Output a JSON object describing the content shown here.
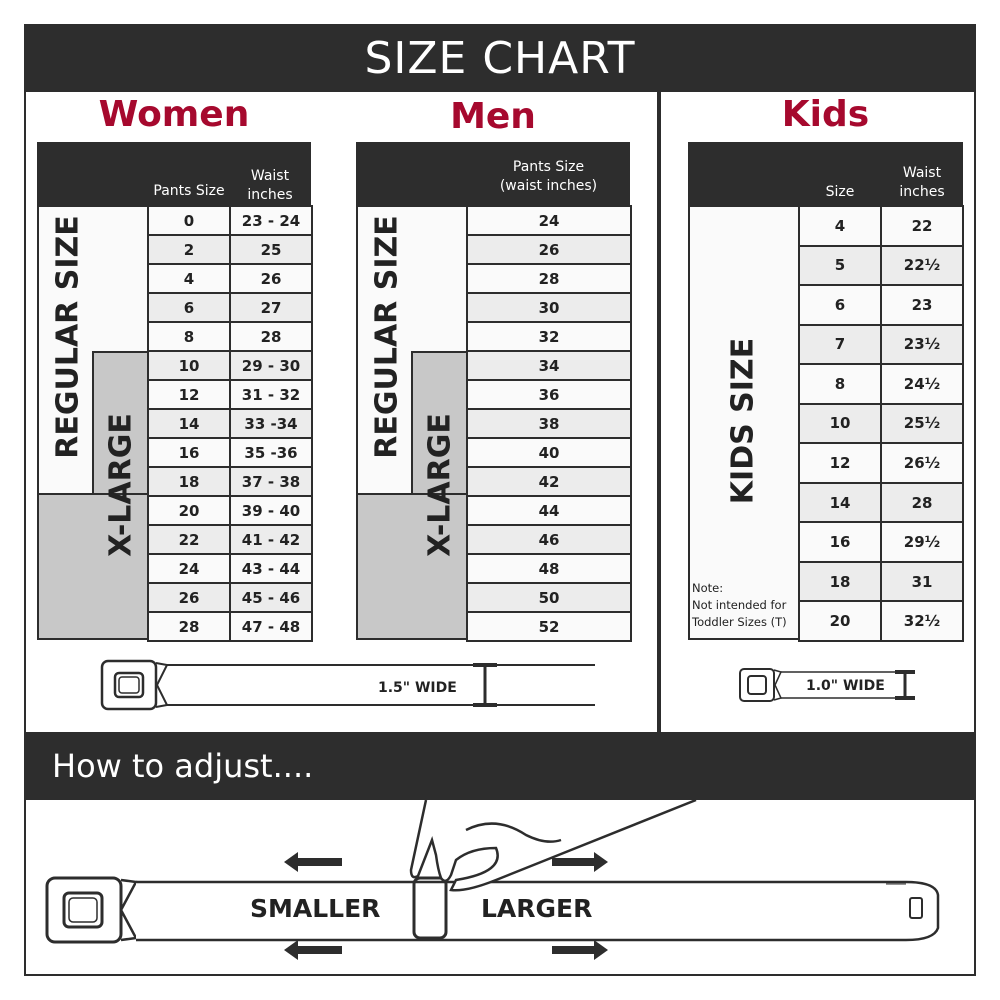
{
  "header": {
    "title": "SIZE CHART"
  },
  "women": {
    "title": "Women",
    "col_size": "Pants Size",
    "col_waist_line1": "Waist",
    "col_waist_line2": "inches",
    "regular_label": "REGULAR SIZE",
    "xlarge_label": "X-LARGE",
    "rows": [
      [
        "0",
        "23 - 24"
      ],
      [
        "2",
        "25"
      ],
      [
        "4",
        "26"
      ],
      [
        "6",
        "27"
      ],
      [
        "8",
        "28"
      ],
      [
        "10",
        "29 - 30"
      ],
      [
        "12",
        "31 - 32"
      ],
      [
        "14",
        "33 -34"
      ],
      [
        "16",
        "35 -36"
      ],
      [
        "18",
        "37 - 38"
      ],
      [
        "20",
        "39 - 40"
      ],
      [
        "22",
        "41 - 42"
      ],
      [
        "24",
        "43 - 44"
      ],
      [
        "26",
        "45 - 46"
      ],
      [
        "28",
        "47 - 48"
      ]
    ],
    "width_label": "1.5\" WIDE"
  },
  "men": {
    "title": "Men",
    "col_line1": "Pants Size",
    "col_line2": "(waist inches)",
    "regular_label": "REGULAR SIZE",
    "xlarge_label": "X-LARGE",
    "rows": [
      "24",
      "26",
      "28",
      "30",
      "32",
      "34",
      "36",
      "38",
      "40",
      "42",
      "44",
      "46",
      "48",
      "50",
      "52"
    ]
  },
  "kids": {
    "title": "Kids",
    "col_size": "Size",
    "col_waist_line1": "Waist",
    "col_waist_line2": "inches",
    "size_label": "KIDS SIZE",
    "note_line1": "Note:",
    "note_line2": "Not intended for",
    "note_line3": "Toddler Sizes (T)",
    "rows": [
      [
        "4",
        "22"
      ],
      [
        "5",
        "22½"
      ],
      [
        "6",
        "23"
      ],
      [
        "7",
        "23½"
      ],
      [
        "8",
        "24½"
      ],
      [
        "10",
        "25½"
      ],
      [
        "12",
        "26½"
      ],
      [
        "14",
        "28"
      ],
      [
        "16",
        "29½"
      ],
      [
        "18",
        "31"
      ],
      [
        "20",
        "32½"
      ]
    ],
    "width_label": "1.0\" WIDE"
  },
  "adjust": {
    "title": "How to adjust....",
    "smaller": "SMALLER",
    "larger": "LARGER"
  },
  "colors": {
    "accent": "#a6092e",
    "dark": "#2d2d2d",
    "xlarge_fill": "#c8c8c8"
  }
}
